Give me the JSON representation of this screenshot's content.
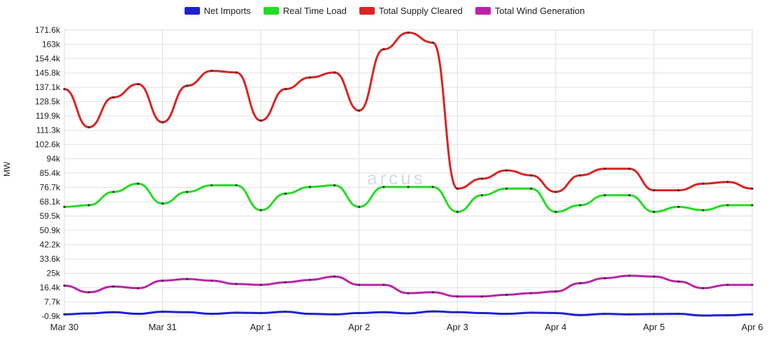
{
  "chart_data": {
    "type": "line",
    "title": "",
    "xlabel": "",
    "ylabel": "MW",
    "watermark": "arcus",
    "x_ticks": [
      "Mar 30",
      "Mar 31",
      "Apr 1",
      "Apr 2",
      "Apr 3",
      "Apr 4",
      "Apr 5",
      "Apr 6"
    ],
    "y_ticks": [
      "-0.9k",
      "7.7k",
      "16.4k",
      "25k",
      "33.6k",
      "42.2k",
      "50.9k",
      "59.5k",
      "68.1k",
      "76.7k",
      "85.4k",
      "94k",
      "102.6k",
      "111.3k",
      "119.9k",
      "128.5k",
      "137.1k",
      "145.8k",
      "154.4k",
      "163k",
      "171.6k"
    ],
    "ylim": [
      -0.9,
      171.6
    ],
    "xlim_days": [
      0,
      7
    ],
    "grid": true,
    "legend_position": "top",
    "x": [
      "Mar 30 00:00",
      "Mar 30 06:00",
      "Mar 30 12:00",
      "Mar 30 18:00",
      "Mar 31 00:00",
      "Mar 31 06:00",
      "Mar 31 12:00",
      "Mar 31 18:00",
      "Apr 1 00:00",
      "Apr 1 06:00",
      "Apr 1 12:00",
      "Apr 1 18:00",
      "Apr 2 00:00",
      "Apr 2 06:00",
      "Apr 2 12:00",
      "Apr 2 18:00",
      "Apr 3 00:00",
      "Apr 3 06:00",
      "Apr 3 12:00",
      "Apr 3 18:00",
      "Apr 4 00:00",
      "Apr 4 06:00",
      "Apr 4 12:00",
      "Apr 4 18:00",
      "Apr 5 00:00",
      "Apr 5 06:00",
      "Apr 5 12:00",
      "Apr 5 18:00",
      "Apr 6 00:00"
    ],
    "series": [
      {
        "name": "Net Imports",
        "color": "#1f1fd6",
        "values": [
          0.2,
          0.8,
          1.5,
          0.5,
          1.8,
          1.5,
          0.5,
          1.2,
          1.0,
          1.8,
          0.5,
          0.2,
          1.0,
          1.5,
          0.8,
          2.0,
          1.5,
          1.0,
          0.5,
          1.2,
          1.0,
          -0.2,
          0.5,
          0.2,
          0.4,
          0.5,
          -0.5,
          -0.3,
          0.2
        ]
      },
      {
        "name": "Real Time Load",
        "color": "#22dd22",
        "values": [
          65,
          66,
          74,
          79,
          67,
          74,
          78,
          78,
          63,
          73,
          77,
          78,
          65,
          77,
          77,
          77,
          62,
          72,
          76,
          76,
          62,
          66,
          72,
          72,
          62,
          65,
          63,
          66,
          66
        ]
      },
      {
        "name": "Total Supply Cleared",
        "color": "#dd2222",
        "values": [
          136,
          113,
          131,
          139,
          116,
          138,
          147,
          146,
          117,
          136,
          143,
          146,
          123,
          160,
          170,
          164,
          76,
          82,
          87,
          84,
          74,
          84,
          88,
          88,
          75,
          75,
          79,
          80,
          76
        ]
      },
      {
        "name": "Total Wind Generation",
        "color": "#bb22aa",
        "values": [
          17.5,
          13.5,
          17,
          16,
          20.5,
          21.5,
          20.5,
          18.5,
          18,
          19.5,
          21,
          23,
          18,
          18,
          13,
          13.5,
          11,
          11,
          12,
          13,
          14,
          19,
          22,
          23.5,
          23,
          20,
          16,
          18,
          18
        ]
      }
    ]
  }
}
